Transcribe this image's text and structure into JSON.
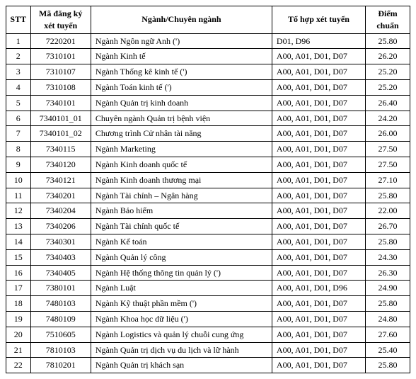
{
  "table": {
    "headers": {
      "stt": "STT",
      "code": "Mã đăng ký xét tuyển",
      "name": "Ngành/Chuyên ngành",
      "combo": "Tổ hợp xét tuyển",
      "score": "Điểm chuẩn"
    },
    "rows": [
      {
        "stt": "1",
        "code": "7220201",
        "name": "Ngành Ngôn ngữ Anh (')",
        "combo": "D01, D96",
        "score": "25.80"
      },
      {
        "stt": "2",
        "code": "7310101",
        "name": "Ngành Kinh tế",
        "combo": "A00, A01, D01, D07",
        "score": "26.20"
      },
      {
        "stt": "3",
        "code": "7310107",
        "name": "Ngành Thống kê kinh tế (')",
        "combo": "A00, A01, D01, D07",
        "score": "25.20"
      },
      {
        "stt": "4",
        "code": "7310108",
        "name": "Ngành Toán kinh tế  (')",
        "combo": "A00, A01, D01, D07",
        "score": "25.20"
      },
      {
        "stt": "5",
        "code": "7340101",
        "name": "Ngành Quản trị kinh doanh",
        "combo": "A00, A01, D01, D07",
        "score": "26.40"
      },
      {
        "stt": "6",
        "code": "7340101_01",
        "name": "Chuyên ngành Quản trị bệnh viện",
        "combo": "A00, A01, D01, D07",
        "score": "24.20"
      },
      {
        "stt": "7",
        "code": "7340101_02",
        "name": "Chương trình Cử nhân tài năng",
        "combo": "A00, A01, D01, D07",
        "score": "26.00"
      },
      {
        "stt": "8",
        "code": "7340115",
        "name": "Ngành Marketing",
        "combo": "A00, A01, D01, D07",
        "score": "27.50"
      },
      {
        "stt": "9",
        "code": "7340120",
        "name": "Ngành Kinh doanh quốc tế",
        "combo": "A00, A01, D01, D07",
        "score": "27.50"
      },
      {
        "stt": "10",
        "code": "7340121",
        "name": "Ngành Kinh doanh thương mại",
        "combo": "A00, A01, D01, D07",
        "score": "27.10"
      },
      {
        "stt": "11",
        "code": "7340201",
        "name": "Ngành Tài chính – Ngân hàng",
        "combo": "A00, A01, D01, D07",
        "score": "25.80"
      },
      {
        "stt": "12",
        "code": "7340204",
        "name": "Ngành Bảo hiểm",
        "combo": "A00, A01, D01, D07",
        "score": "22.00"
      },
      {
        "stt": "13",
        "code": "7340206",
        "name": "Ngành Tài chính quốc tế",
        "combo": "A00, A01, D01, D07",
        "score": "26.70"
      },
      {
        "stt": "14",
        "code": "7340301",
        "name": "Ngành Kế toán",
        "combo": "A00, A01, D01, D07",
        "score": "25.80"
      },
      {
        "stt": "15",
        "code": "7340403",
        "name": "Ngành Quản lý công",
        "combo": "A00, A01, D01, D07",
        "score": "24.30"
      },
      {
        "stt": "16",
        "code": "7340405",
        "name": "Ngành Hệ thống thông tin quản lý (')",
        "combo": "A00, A01, D01, D07",
        "score": "26.30"
      },
      {
        "stt": "17",
        "code": "7380101",
        "name": "Ngành Luật",
        "combo": "A00, A01, D01, D96",
        "score": "24.90"
      },
      {
        "stt": "18",
        "code": "7480103",
        "name": "Ngành Kỹ thuật phần mềm (')",
        "combo": "A00, A01, D01, D07",
        "score": "25.80"
      },
      {
        "stt": "19",
        "code": "7480109",
        "name": "Ngành Khoa học dữ liệu (')",
        "combo": "A00, A01, D01, D07",
        "score": "24.80"
      },
      {
        "stt": "20",
        "code": "7510605",
        "name": "Ngành Logistics và quản lý chuỗi cung ứng",
        "combo": "A00, A01, D01, D07",
        "score": "27.60"
      },
      {
        "stt": "21",
        "code": "7810103",
        "name": "Ngành Quản trị dịch vụ du lịch và lữ hành",
        "combo": "A00, A01, D01, D07",
        "score": "25.40"
      },
      {
        "stt": "22",
        "code": "7810201",
        "name": "Ngành Quản trị khách sạn",
        "combo": "A00, A01, D01, D07",
        "score": "25.80"
      }
    ]
  }
}
